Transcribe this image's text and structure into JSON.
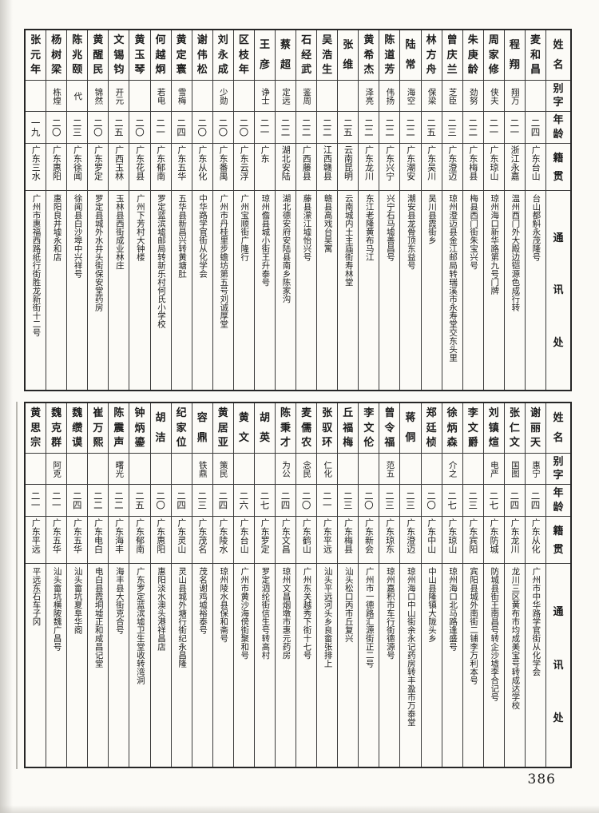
{
  "page": {
    "number": "386"
  },
  "headers": {
    "name": "姓名",
    "alias": "别字",
    "age": "年龄",
    "origin": "籍贯",
    "address": "通讯处"
  },
  "tables": [
    {
      "entries": [
        {
          "name": "麦和昌",
          "alias": "",
          "age": "二四",
          "origin": "广东台山",
          "address": "台山都斛永茂隆号"
        },
        {
          "name": "程翔",
          "alias": "翔万",
          "age": "二一",
          "origin": "浙江永嘉",
          "address": "温州西门外大殿边铠源色成行转"
        },
        {
          "name": "周家修",
          "alias": "侠夫",
          "age": "二一",
          "origin": "广东琼山",
          "address": "琼州海口新华路第九号门牌"
        },
        {
          "name": "朱庚龄",
          "alias": "劲努",
          "age": "二二",
          "origin": "广东梅县",
          "address": "梅县西门街朱宝兴号"
        },
        {
          "name": "曾庆兰",
          "alias": "芝臣",
          "age": "二三",
          "origin": "广东澄迈",
          "address": "琼州澄迈县金江邮局转瑞溪市永寿堂交东头里"
        },
        {
          "name": "林方舟",
          "alias": "保梁",
          "age": "二五",
          "origin": "广东吴川",
          "address": "吴川县霞街乡"
        },
        {
          "name": "陆常",
          "alias": "海空",
          "age": "二二",
          "origin": "广东潮安",
          "address": "潮安县龙骨顶东益号"
        },
        {
          "name": "陈道芳",
          "alias": "伟扬",
          "age": "二二",
          "origin": "广东兴宁",
          "address": "兴宁石马墟善昌号"
        },
        {
          "name": "黄希杰",
          "alias": "泽亮",
          "age": "二二",
          "origin": "广东龙川",
          "address": "东江老隆黄布马江"
        },
        {
          "name": "张维",
          "alias": "",
          "age": "二五",
          "origin": "云南昆明",
          "address": "云南城内土主庙街寿林堂"
        },
        {
          "name": "吴浩生",
          "alias": "",
          "age": "二二",
          "origin": "江西赣县",
          "address": "赣县高戏台吴寓"
        },
        {
          "name": "石经武",
          "alias": "鉴周",
          "age": "二二",
          "origin": "广西藤县",
          "address": "藤县濛江墟怡兴号"
        },
        {
          "name": "蔡超",
          "alias": "定远",
          "age": "二二",
          "origin": "湖北安陆",
          "address": "湖北德安府安陆县南乡陈家沟"
        },
        {
          "name": "王彦",
          "alias": "诤士",
          "age": "二一",
          "origin": "广东",
          "address": "琼州儋县城小街王升泰号"
        },
        {
          "name": "区枝年",
          "alias": "",
          "age": "二〇",
          "origin": "广东云浮",
          "address": "广州宝顺街广隆行"
        },
        {
          "name": "刘永成",
          "alias": "少勋",
          "age": "二〇",
          "origin": "广东番禺",
          "address": "广州市丹桂里步蟾坊第五号刘诚厚堂"
        },
        {
          "name": "谢伟松",
          "alias": "",
          "age": "二〇",
          "origin": "广东从化",
          "address": "中华路学官街从化学会"
        },
        {
          "name": "黄定寰",
          "alias": "雪梅",
          "age": "二四",
          "origin": "广东五华",
          "address": "五华县新昌兴转黄塘肚"
        },
        {
          "name": "何越炯",
          "alias": "若电",
          "age": "二一",
          "origin": "广东郁南",
          "address": "罗定蓝滨墟邮局转新乐村何氏小学校"
        },
        {
          "name": "黄玉琴",
          "alias": "",
          "age": "二〇",
          "origin": "广东花县",
          "address": "广州下芳村大钟楼"
        },
        {
          "name": "文锡钧",
          "alias": "开元",
          "age": "二五",
          "origin": "广西玉林",
          "address": "玉林县西街成业林庄"
        },
        {
          "name": "黄醒民",
          "alias": "锦然",
          "age": "二〇",
          "origin": "广东罗定",
          "address": "罗定县城外水井头街保安堂药房"
        },
        {
          "name": "陈兆颐",
          "alias": "代",
          "age": "二三",
          "origin": "广东徐闻",
          "address": "徐闻县白沙埠中兴祥号"
        },
        {
          "name": "杨树梁",
          "alias": "栋煌",
          "age": "二〇",
          "origin": "广东惠阳",
          "address": "惠阳良井墟永和店"
        },
        {
          "name": "张元年",
          "alias": "",
          "age": "一九",
          "origin": "广东三水",
          "address": "广州市惠福西路纸行街胜龙新街十二号"
        }
      ]
    },
    {
      "entries": [
        {
          "name": "谢丽天",
          "alias": "惠宁",
          "age": "二四",
          "origin": "广东从化",
          "address": "广州市中华路学官街从化学会"
        },
        {
          "name": "张仁文",
          "alias": "国图",
          "age": "二四",
          "origin": "广东龙川",
          "address": "龙川三区黄布市均成美宝号转成达学校"
        },
        {
          "name": "刘镇煊",
          "alias": "电严",
          "age": "二七",
          "origin": "广东防城",
          "address": "防城县街王南昌号转企沙墟李合记号"
        },
        {
          "name": "李文爵",
          "alias": "",
          "age": "二三",
          "origin": "广东宾阳",
          "address": "宾阳县城外南街二铺李万利本号"
        },
        {
          "name": "徐炳森",
          "alias": "介之",
          "age": "二七",
          "origin": "广东琼山",
          "address": "琼州海口北马路逢盛号"
        },
        {
          "name": "郑廷桢",
          "alias": "",
          "age": "二〇",
          "origin": "广东中山",
          "address": "中山县隆镇大陇头乡"
        },
        {
          "name": "蒋侗",
          "alias": "",
          "age": "二三",
          "origin": "广东澄迈",
          "address": "琼州海口中山街余永记药房转丰盈市万泰堂"
        },
        {
          "name": "曾令福",
          "alias": "范五",
          "age": "二三",
          "origin": "广东琼东",
          "address": "琼州嘉积市车行街德源号"
        },
        {
          "name": "李文伦",
          "alias": "",
          "age": "二〇",
          "origin": "广东新会",
          "address": "广州市一德路汇源街正二号"
        },
        {
          "name": "丘福梅",
          "alias": "",
          "age": "二三",
          "origin": "广东梅县",
          "address": "汕头松口丙市丘复兴"
        },
        {
          "name": "张驭环",
          "alias": "仁化",
          "age": "二一",
          "origin": "广东平远",
          "address": "汕头平远河头乡良畲张排上"
        },
        {
          "name": "麦儒农",
          "alias": "念民",
          "age": "二〇",
          "origin": "广东鹤山",
          "address": "广州东关越秀下街十七号"
        },
        {
          "name": "陈秉才",
          "alias": "为公",
          "age": "二四",
          "origin": "广东文昌",
          "address": "琼州文昌烟墩市惠元药房"
        },
        {
          "name": "胡英",
          "alias": "",
          "age": "二七",
          "origin": "广东罗定",
          "address": "罗定泗纶街信生号转高村"
        },
        {
          "name": "黄文",
          "alias": "",
          "age": "二六",
          "origin": "广东台山",
          "address": "广州市黄沙海傍街聚和号"
        },
        {
          "name": "黄居亚",
          "alias": "策民",
          "age": "二四",
          "origin": "广东陵水",
          "address": "琼州陵水县保和斋号"
        },
        {
          "name": "容鼎",
          "alias": "铁鼎",
          "age": "二三",
          "origin": "广东茂名",
          "address": "茂名谢鸡墟裕泰号"
        },
        {
          "name": "纪家位",
          "alias": "",
          "age": "二四",
          "origin": "广东灵山",
          "address": "灵山县城外塘行街纪永昌隆"
        },
        {
          "name": "胡洁",
          "alias": "",
          "age": "二〇",
          "origin": "广东惠阳",
          "address": "惠阳淡水澳头港祥昌店"
        },
        {
          "name": "钟炳鎏",
          "alias": "",
          "age": "二五",
          "origin": "广东郁南",
          "address": "广东罗定蓝滨墟卫生堂收转湾洞"
        },
        {
          "name": "陈震声",
          "alias": "曙光",
          "age": "二二",
          "origin": "广东海丰",
          "address": "海丰县大街克合号"
        },
        {
          "name": "崔万熙",
          "alias": "",
          "age": "二二",
          "origin": "广东电白",
          "address": "电白县霞垌墟正和咸昌记堂"
        },
        {
          "name": "魏缵谟",
          "alias": "",
          "age": "二四",
          "origin": "广东五华",
          "address": "汕头畲坑夏阜华阁"
        },
        {
          "name": "魏克群",
          "alias": "阿克",
          "age": "二一",
          "origin": "广东五华",
          "address": "汕头畲坑横陂魏广昌号"
        },
        {
          "name": "黄思宗",
          "alias": "",
          "age": "二一",
          "origin": "广东平远",
          "address": "平远东石车子冈"
        }
      ]
    }
  ]
}
